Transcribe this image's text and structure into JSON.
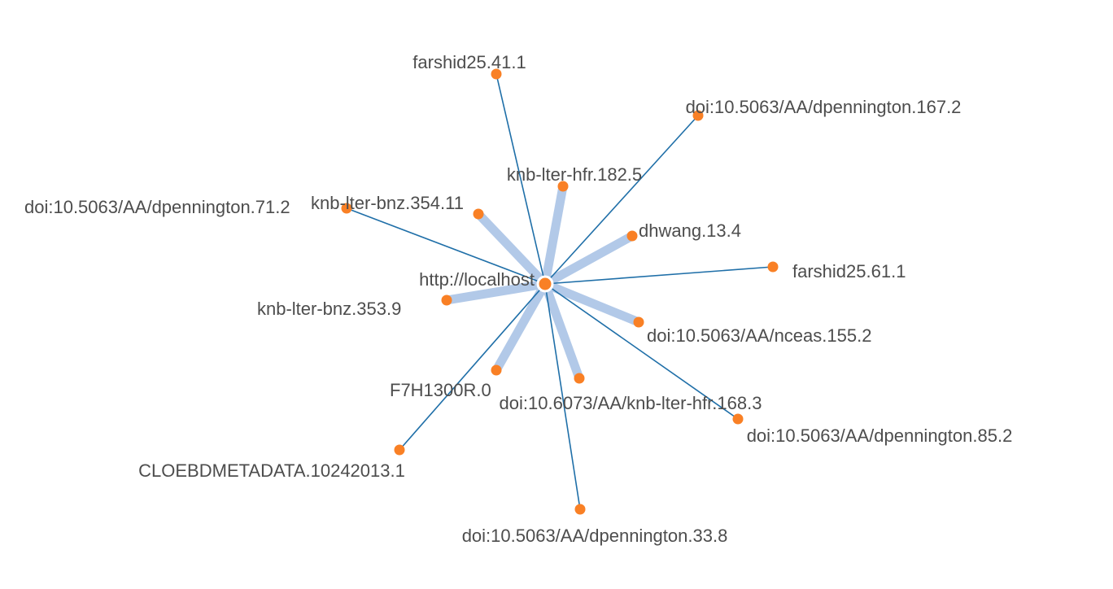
{
  "graph": {
    "center": {
      "id": "center",
      "label": "http://localhost"
    },
    "nodes": [
      {
        "id": "farshid25-41-1",
        "label": "farshid25.41.1",
        "link": "thin"
      },
      {
        "id": "dpennington-167-2",
        "label": "doi:10.5063/AA/dpennington.167.2",
        "link": "thin"
      },
      {
        "id": "knb-lter-hfr-182-5",
        "label": "knb-lter-hfr.182.5",
        "link": "thick"
      },
      {
        "id": "dpennington-71-2",
        "label": "doi:10.5063/AA/dpennington.71.2",
        "link": "thin"
      },
      {
        "id": "knb-lter-bnz-354-11",
        "label": "knb-lter-bnz.354.11",
        "link": "thick"
      },
      {
        "id": "dhwang-13-4",
        "label": "dhwang.13.4",
        "link": "thick"
      },
      {
        "id": "farshid25-61-1",
        "label": "farshid25.61.1",
        "link": "thin"
      },
      {
        "id": "knb-lter-bnz-353-9",
        "label": "knb-lter-bnz.353.9",
        "link": "thick"
      },
      {
        "id": "nceas-155-2",
        "label": "doi:10.5063/AA/nceas.155.2",
        "link": "thick"
      },
      {
        "id": "f7h1300r-0",
        "label": "F7H1300R.0",
        "link": "thick"
      },
      {
        "id": "knb-lter-hfr-168-3",
        "label": "doi:10.6073/AA/knb-lter-hfr.168.3",
        "link": "thick"
      },
      {
        "id": "dpennington-85-2",
        "label": "doi:10.5063/AA/dpennington.85.2",
        "link": "thin"
      },
      {
        "id": "cloebdmetadata",
        "label": "CLOEBDMETADATA.10242013.1",
        "link": "thin"
      },
      {
        "id": "dpennington-33-8",
        "label": "doi:10.5063/AA/dpennington.33.8",
        "link": "thin"
      }
    ]
  },
  "colors": {
    "node_fill": "#f98025",
    "thin_link": "#1f6fa8",
    "thick_link": "#b2c9e8",
    "label": "#4d4d4d",
    "center_stroke": "#ffffff"
  }
}
